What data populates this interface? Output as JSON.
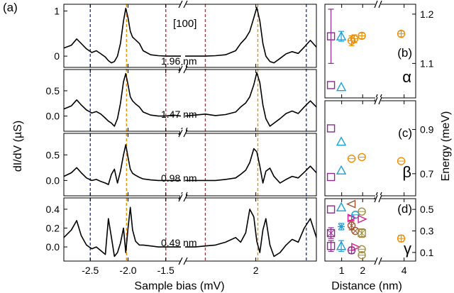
{
  "figure": {
    "panel_a_label": "(a)",
    "direction_label": "[100]",
    "left_ylabel": "dI/dV (µS)",
    "left_xlabel": "Sample bias (mV)",
    "right_xlabel": "Distance (nm)",
    "right_ylabel": "Energy (meV)"
  },
  "chart_data": [
    {
      "type": "line",
      "panel": "a",
      "xlabel": "Sample bias (mV)",
      "ylabel": "dI/dV (µS)",
      "axis_break": "between -1.3 and 1.3 mV (broken x axis)",
      "x_segments": [
        [
          -2.85,
          -1.3
        ],
        [
          1.3,
          2.6
        ]
      ],
      "x_ticks": [
        {
          "value": -2.5,
          "label": "-2.5"
        },
        {
          "value": -2.0,
          "label": "-2.0"
        },
        {
          "value": -1.5,
          "label": "-1.5"
        },
        {
          "value": 2.0,
          "label": "2"
        }
      ],
      "vertical_lines": [
        {
          "x": -2.5,
          "color": "#1f3fb0",
          "style": "dashed"
        },
        {
          "x": 2.5,
          "color": "#1f3fb0",
          "style": "dashed"
        },
        {
          "x": -2.02,
          "color": "#f08c00",
          "style": "dashed"
        },
        {
          "x": 2.02,
          "color": "#f08c00",
          "style": "dashed"
        },
        {
          "x": -1.5,
          "color": "#e0202a",
          "style": "dashed"
        },
        {
          "x": 1.5,
          "color": "#e0202a",
          "style": "dashed"
        }
      ],
      "series": [
        {
          "name": "1.96 nm",
          "ylim": [
            -0.25,
            1.15
          ],
          "yticks": [
            {
              "value": 0,
              "label": "0"
            },
            {
              "value": 1,
              "label": "1"
            }
          ],
          "x": [
            -2.85,
            -2.75,
            -2.68,
            -2.62,
            -2.55,
            -2.48,
            -2.42,
            -2.36,
            -2.3,
            -2.26,
            -2.22,
            -2.18,
            -2.14,
            -2.1,
            -2.06,
            -2.03,
            -2.0,
            -1.97,
            -1.94,
            -1.9,
            -1.85,
            -1.8,
            -1.7,
            -1.6,
            -1.5,
            -1.4,
            -1.3,
            1.3,
            1.4,
            1.5,
            1.6,
            1.7,
            1.8,
            1.85,
            1.9,
            1.94,
            1.98,
            2.01,
            2.04,
            2.07,
            2.1,
            2.14,
            2.18,
            2.24,
            2.3,
            2.36,
            2.42,
            2.48,
            2.54,
            2.6
          ],
          "y": [
            0.18,
            0.24,
            0.38,
            0.28,
            0.16,
            0.08,
            0.12,
            0.05,
            -0.02,
            -0.1,
            -0.15,
            -0.12,
            0.0,
            0.28,
            0.78,
            1.06,
            0.85,
            0.55,
            0.42,
            0.36,
            0.28,
            0.12,
            0.03,
            0.01,
            0.0,
            0.0,
            0.0,
            0.0,
            0.0,
            0.0,
            0.01,
            0.03,
            0.12,
            0.28,
            0.4,
            0.55,
            0.85,
            1.08,
            0.78,
            0.28,
            0.0,
            -0.12,
            -0.15,
            -0.05,
            0.05,
            0.1,
            0.06,
            0.2,
            0.35,
            0.2
          ]
        },
        {
          "name": "1.47 nm",
          "ylim": [
            -0.3,
            0.92
          ],
          "yticks": [
            {
              "value": 0,
              "label": "0.0"
            },
            {
              "value": 0.5,
              "label": "0.5"
            }
          ],
          "x": [
            -2.85,
            -2.75,
            -2.68,
            -2.62,
            -2.55,
            -2.48,
            -2.42,
            -2.36,
            -2.3,
            -2.26,
            -2.22,
            -2.18,
            -2.14,
            -2.1,
            -2.06,
            -2.03,
            -2.0,
            -1.97,
            -1.94,
            -1.9,
            -1.85,
            -1.8,
            -1.7,
            -1.6,
            -1.5,
            -1.4,
            -1.3,
            1.3,
            1.4,
            1.5,
            1.6,
            1.7,
            1.8,
            1.85,
            1.9,
            1.94,
            1.98,
            2.01,
            2.04,
            2.07,
            2.1,
            2.14,
            2.18,
            2.24,
            2.3,
            2.36,
            2.42,
            2.48,
            2.54,
            2.6
          ],
          "y": [
            0.14,
            0.2,
            0.32,
            0.22,
            0.12,
            0.06,
            0.09,
            0.04,
            -0.04,
            -0.1,
            -0.14,
            -0.2,
            -0.05,
            0.25,
            0.68,
            0.84,
            0.62,
            0.38,
            0.3,
            0.24,
            0.18,
            0.08,
            0.02,
            0.0,
            0.0,
            0.02,
            0.0,
            0.0,
            0.02,
            0.04,
            0.01,
            0.03,
            0.08,
            0.18,
            0.26,
            0.38,
            0.62,
            0.86,
            0.66,
            0.22,
            -0.05,
            -0.2,
            -0.14,
            -0.05,
            0.05,
            0.1,
            0.05,
            0.18,
            0.3,
            0.18
          ]
        },
        {
          "name": "0.98 nm",
          "ylim": [
            -0.3,
            0.92
          ],
          "yticks": [
            {
              "value": 0,
              "label": "0.0"
            },
            {
              "value": 0.5,
              "label": "0.5"
            }
          ],
          "x": [
            -2.85,
            -2.75,
            -2.68,
            -2.62,
            -2.55,
            -2.48,
            -2.42,
            -2.36,
            -2.3,
            -2.26,
            -2.22,
            -2.18,
            -2.14,
            -2.1,
            -2.06,
            -2.03,
            -2.0,
            -1.97,
            -1.94,
            -1.9,
            -1.85,
            -1.8,
            -1.7,
            -1.6,
            -1.5,
            -1.4,
            -1.3,
            1.3,
            1.4,
            1.5,
            1.6,
            1.7,
            1.8,
            1.85,
            1.9,
            1.94,
            1.98,
            2.01,
            2.04,
            2.07,
            2.1,
            2.14,
            2.18,
            2.24,
            2.3,
            2.36,
            2.42,
            2.48,
            2.54,
            2.6
          ],
          "y": [
            0.08,
            0.15,
            0.25,
            0.15,
            0.05,
            0.0,
            0.02,
            -0.02,
            -0.05,
            -0.08,
            0.12,
            0.22,
            -0.05,
            0.18,
            0.5,
            0.7,
            0.45,
            0.22,
            0.14,
            0.1,
            0.06,
            0.03,
            0.01,
            0.0,
            0.0,
            0.0,
            0.0,
            0.0,
            0.0,
            0.0,
            0.0,
            0.02,
            0.05,
            0.12,
            0.2,
            0.35,
            0.62,
            0.56,
            0.28,
            -0.05,
            0.18,
            0.24,
            0.08,
            -0.05,
            0.02,
            0.08,
            0.05,
            0.16,
            0.28,
            0.15
          ]
        },
        {
          "name": "0.49 nm",
          "ylim": [
            -0.15,
            0.52
          ],
          "yticks": [
            {
              "value": 0,
              "label": "0.0"
            },
            {
              "value": 0.2,
              "label": "0.2"
            },
            {
              "value": 0.4,
              "label": "0.4"
            }
          ],
          "x": [
            -2.85,
            -2.75,
            -2.68,
            -2.62,
            -2.55,
            -2.48,
            -2.42,
            -2.36,
            -2.3,
            -2.26,
            -2.22,
            -2.18,
            -2.14,
            -2.1,
            -2.06,
            -2.03,
            -2.0,
            -1.97,
            -1.94,
            -1.9,
            -1.85,
            -1.8,
            -1.7,
            -1.6,
            -1.5,
            -1.4,
            -1.3,
            1.3,
            1.4,
            1.5,
            1.6,
            1.7,
            1.8,
            1.85,
            1.9,
            1.94,
            1.98,
            2.01,
            2.04,
            2.07,
            2.1,
            2.14,
            2.18,
            2.24,
            2.3,
            2.36,
            2.42,
            2.48,
            2.54,
            2.6
          ],
          "y": [
            0.1,
            0.18,
            0.28,
            0.12,
            0.02,
            -0.02,
            0.0,
            -0.04,
            -0.08,
            0.3,
            0.1,
            -0.1,
            -0.06,
            0.04,
            0.2,
            -0.06,
            0.2,
            0.42,
            0.18,
            0.06,
            0.02,
            0.02,
            0.01,
            0.0,
            0.0,
            0.0,
            0.0,
            0.0,
            0.0,
            0.01,
            0.02,
            0.05,
            0.1,
            0.05,
            0.15,
            0.4,
            0.32,
            0.06,
            -0.06,
            0.18,
            0.3,
            0.02,
            -0.1,
            -0.06,
            0.02,
            0.08,
            0.05,
            0.2,
            0.3,
            0.1
          ]
        }
      ]
    },
    {
      "type": "scatter",
      "panel": "b",
      "label": "(b)",
      "greek": "α",
      "xlabel": "Distance (nm)",
      "ylabel": "Energy (meV)",
      "xlim": [
        0.2,
        4.4
      ],
      "ylim": [
        1.03,
        1.22
      ],
      "yticks": [
        {
          "value": 1.1,
          "label": "1.1"
        },
        {
          "value": 1.2,
          "label": "1.2"
        }
      ],
      "axis_break": "x axis broken near 3 nm",
      "points": [
        {
          "x": 0.49,
          "y": 1.155,
          "err": 0.055,
          "marker": "square",
          "color": "#8e2a8e"
        },
        {
          "x": 0.49,
          "y": 1.056,
          "err": 0.0,
          "marker": "square",
          "color": "#8e2a8e"
        },
        {
          "x": 0.98,
          "y": 1.155,
          "err": 0.01,
          "marker": "triangle-up",
          "color": "#1a9fdb"
        },
        {
          "x": 0.98,
          "y": 1.052,
          "err": 0.0,
          "marker": "triangle-up",
          "color": "#1a9fdb"
        },
        {
          "x": 1.47,
          "y": 1.146,
          "err": 0.01,
          "marker": "circle",
          "color": "#f08c00"
        },
        {
          "x": 1.6,
          "y": 1.15,
          "err": 0.008,
          "marker": "circle",
          "color": "#f08c00"
        },
        {
          "x": 1.96,
          "y": 1.156,
          "err": 0.006,
          "marker": "circle",
          "color": "#f08c00"
        },
        {
          "x": 3.9,
          "y": 1.16,
          "err": 0.006,
          "marker": "circle",
          "color": "#f08c00"
        }
      ]
    },
    {
      "type": "scatter",
      "panel": "c",
      "label": "(c)",
      "greek": "β",
      "xlabel": "Distance (nm)",
      "ylabel": "Energy (meV)",
      "xlim": [
        0.2,
        4.4
      ],
      "ylim": [
        0.6,
        1.03
      ],
      "yticks": [
        {
          "value": 0.7,
          "label": "0.7"
        },
        {
          "value": 0.9,
          "label": "0.9"
        }
      ],
      "points": [
        {
          "x": 0.49,
          "y": 0.905,
          "err": 0.0,
          "marker": "square",
          "color": "#8e2a8e"
        },
        {
          "x": 0.49,
          "y": 0.685,
          "err": 0.0,
          "marker": "square",
          "color": "#8e2a8e"
        },
        {
          "x": 0.98,
          "y": 0.845,
          "err": 0.0,
          "marker": "triangle-up",
          "color": "#1a9fdb"
        },
        {
          "x": 0.98,
          "y": 0.715,
          "err": 0.0,
          "marker": "triangle-up",
          "color": "#1a9fdb"
        },
        {
          "x": 1.47,
          "y": 0.768,
          "err": 0.0,
          "marker": "circle",
          "color": "#f08c00"
        },
        {
          "x": 1.96,
          "y": 0.775,
          "err": 0.0,
          "marker": "circle",
          "color": "#f08c00"
        },
        {
          "x": 3.9,
          "y": 0.757,
          "err": 0.0,
          "marker": "circle",
          "color": "#f08c00"
        }
      ]
    },
    {
      "type": "scatter",
      "panel": "d",
      "label": "(d)",
      "greek": "γ",
      "xlabel": "Distance (nm)",
      "ylabel": "Energy (meV)",
      "xlim": [
        0.2,
        4.4
      ],
      "ylim": [
        0.02,
        0.6
      ],
      "xticks": [
        {
          "value": 1,
          "label": "1"
        },
        {
          "value": 2,
          "label": "2"
        },
        {
          "value": 4,
          "label": "4"
        }
      ],
      "yticks": [
        {
          "value": 0.1,
          "label": "0.1"
        },
        {
          "value": 0.3,
          "label": "0.3"
        },
        {
          "value": 0.5,
          "label": "0.5"
        }
      ],
      "points": [
        {
          "x": 0.49,
          "y": 0.5,
          "err": 0.0,
          "marker": "square",
          "color": "#8e2a8e"
        },
        {
          "x": 0.49,
          "y": 0.28,
          "err": 0.05,
          "marker": "square-x",
          "color": "#8e2a8e"
        },
        {
          "x": 0.49,
          "y": 0.16,
          "err": 0.05,
          "marker": "square",
          "color": "#8e2a8e"
        },
        {
          "x": 0.98,
          "y": 0.52,
          "err": 0.0,
          "marker": "triangle-up",
          "color": "#1a9fdb"
        },
        {
          "x": 0.98,
          "y": 0.34,
          "err": 0.03,
          "marker": "star",
          "color": "#1a9fdb"
        },
        {
          "x": 0.98,
          "y": 0.16,
          "err": 0.05,
          "marker": "triangle-up",
          "color": "#1a9fdb"
        },
        {
          "x": 1.47,
          "y": 0.55,
          "err": 0.0,
          "marker": "triangle-left",
          "color": "#a0522d"
        },
        {
          "x": 1.47,
          "y": 0.42,
          "err": 0.02,
          "marker": "triangle-right",
          "color": "#d6198c"
        },
        {
          "x": 1.47,
          "y": 0.35,
          "err": 0.04,
          "marker": "circle-x",
          "color": "#a0522d"
        },
        {
          "x": 1.47,
          "y": 0.12,
          "err": 0.03,
          "marker": "circle",
          "color": "#8e2a8e"
        },
        {
          "x": 1.65,
          "y": 0.45,
          "err": 0.0,
          "marker": "circle",
          "color": "#1a9fdb"
        },
        {
          "x": 1.65,
          "y": 0.3,
          "err": 0.0,
          "marker": "circle-x",
          "color": "#a0522d"
        },
        {
          "x": 1.65,
          "y": 0.15,
          "err": 0.0,
          "marker": "triangle-right",
          "color": "#d6198c"
        },
        {
          "x": 1.96,
          "y": 0.48,
          "err": 0.0,
          "marker": "circle",
          "color": "#a08c3c"
        },
        {
          "x": 1.96,
          "y": 0.41,
          "err": 0.0,
          "marker": "triangle-right",
          "color": "#d6198c"
        },
        {
          "x": 1.96,
          "y": 0.28,
          "err": 0.04,
          "marker": "square-x",
          "color": "#a08c3c"
        },
        {
          "x": 1.96,
          "y": 0.13,
          "err": 0.0,
          "marker": "circle",
          "color": "#a08c3c"
        },
        {
          "x": 1.96,
          "y": 0.075,
          "err": 0.0,
          "marker": "circle",
          "color": "#a08c3c"
        },
        {
          "x": 3.9,
          "y": 0.23,
          "err": 0.03,
          "marker": "circle",
          "color": "#f08c00"
        }
      ]
    }
  ]
}
